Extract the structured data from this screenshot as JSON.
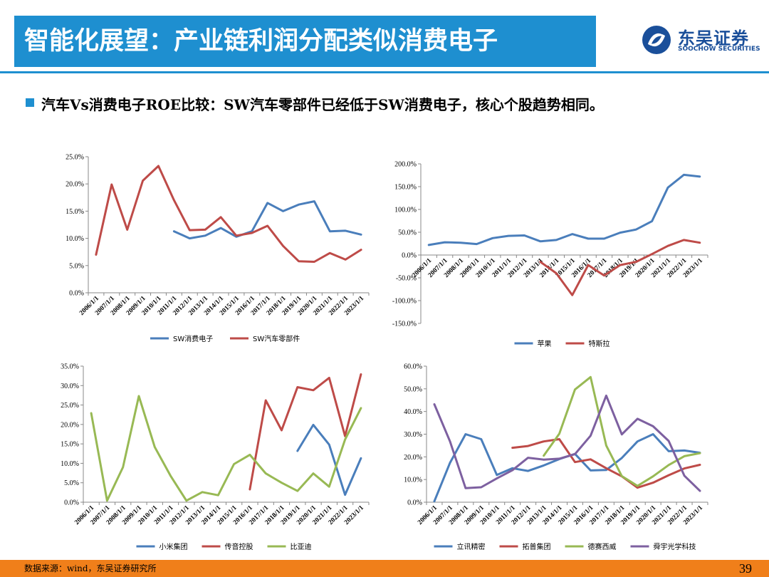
{
  "header": {
    "title": "智能化展望：产业链利润分配类似消费电子",
    "logo_cn": "东吴证券",
    "logo_en": "SOOCHOW SECURITIES"
  },
  "subtitle": "汽车Vs消费电子ROE比较：SW汽车零部件已经低于SW消费电子，核心个股趋势相同。",
  "footer": {
    "source": "数据来源：wind，东吴证券研究所",
    "page": "39"
  },
  "colors": {
    "blue": "#4a7ebb",
    "red": "#be4b48",
    "green": "#98b954",
    "purple": "#7d60a0",
    "title_bg": "#1e8fd0",
    "footer_bg": "#f07f1a"
  },
  "chart_data": [
    {
      "type": "line",
      "x": [
        "2006/1/1",
        "2007/1/1",
        "2008/1/1",
        "2009/1/1",
        "2010/1/1",
        "2011/1/1",
        "2012/1/1",
        "2013/1/1",
        "2014/1/1",
        "2015/1/1",
        "2016/1/1",
        "2017/1/1",
        "2018/1/1",
        "2019/1/1",
        "2020/1/1",
        "2021/1/1",
        "2022/1/1",
        "2023/1/1"
      ],
      "ylim": [
        0,
        25
      ],
      "yticks": [
        "0.0%",
        "5.0%",
        "10.0%",
        "15.0%",
        "20.0%",
        "25.0%"
      ],
      "legend_position": "bottom",
      "series": [
        {
          "name": "SW消费电子",
          "color": "blue",
          "values": [
            null,
            null,
            null,
            null,
            null,
            11.3,
            10.0,
            10.5,
            11.9,
            10.3,
            11.3,
            16.5,
            15.0,
            16.2,
            16.8,
            11.3,
            11.4,
            10.7
          ]
        },
        {
          "name": "SW汽车零部件",
          "color": "red",
          "values": [
            7.0,
            19.9,
            11.6,
            20.6,
            23.3,
            17.0,
            11.5,
            11.6,
            13.9,
            10.5,
            11.0,
            12.3,
            8.6,
            5.8,
            5.7,
            7.3,
            6.1,
            7.9
          ]
        }
      ]
    },
    {
      "type": "line",
      "x": [
        "2006/1/1",
        "2007/1/1",
        "2008/1/1",
        "2009/1/1",
        "2010/1/1",
        "2011/1/1",
        "2012/1/1",
        "2013/1/1",
        "2014/1/1",
        "2015/1/1",
        "2016/1/1",
        "2017/1/1",
        "2018/1/1",
        "2019/1/1",
        "2020/1/1",
        "2021/1/1",
        "2022/1/1",
        "2023/1/1"
      ],
      "ylim": [
        -150,
        200
      ],
      "yticks": [
        "-150.0%",
        "-100.0%",
        "-50.0%",
        "0.0%",
        "50.0%",
        "100.0%",
        "150.0%",
        "200.0%"
      ],
      "legend_position": "bottom",
      "series": [
        {
          "name": "苹果",
          "color": "blue",
          "values": [
            22,
            28,
            27,
            24,
            37,
            42,
            43,
            30,
            33,
            46,
            36,
            36,
            49,
            56,
            74,
            148,
            176,
            172
          ]
        },
        {
          "name": "特斯拉",
          "color": "red",
          "values": [
            null,
            null,
            null,
            null,
            null,
            null,
            null,
            -15,
            -40,
            -88,
            -22,
            -45,
            -22,
            -15,
            2,
            20,
            33,
            27
          ]
        }
      ]
    },
    {
      "type": "line",
      "x": [
        "2006/1/1",
        "2007/1/1",
        "2008/1/1",
        "2009/1/1",
        "2010/1/1",
        "2011/1/1",
        "2012/1/1",
        "2013/1/1",
        "2014/1/1",
        "2015/1/1",
        "2016/1/1",
        "2017/1/1",
        "2018/1/1",
        "2019/1/1",
        "2020/1/1",
        "2021/1/1",
        "2022/1/1",
        "2023/1/1"
      ],
      "ylim": [
        0,
        35
      ],
      "yticks": [
        "0.0%",
        "5.0%",
        "10.0%",
        "15.0%",
        "20.0%",
        "25.0%",
        "30.0%",
        "35.0%"
      ],
      "legend_position": "bottom",
      "series": [
        {
          "name": "小米集团",
          "color": "blue",
          "values": [
            null,
            null,
            null,
            null,
            null,
            null,
            null,
            null,
            null,
            null,
            null,
            null,
            null,
            13.2,
            19.9,
            14.8,
            1.9,
            11.3
          ]
        },
        {
          "name": "传音控股",
          "color": "red",
          "values": [
            null,
            null,
            null,
            null,
            null,
            null,
            null,
            null,
            null,
            null,
            3.3,
            26.2,
            18.5,
            29.6,
            28.8,
            32.0,
            17.0,
            32.9
          ]
        },
        {
          "name": "比亚迪",
          "color": "green",
          "values": [
            22.9,
            0.4,
            9.0,
            27.3,
            14.2,
            6.8,
            0.4,
            2.6,
            1.8,
            9.8,
            12.2,
            7.4,
            5.0,
            2.9,
            7.4,
            4.0,
            16.1,
            24.2
          ]
        }
      ]
    },
    {
      "type": "line",
      "x": [
        "2006/1/1",
        "2007/1/1",
        "2008/1/1",
        "2009/1/1",
        "2010/1/1",
        "2011/1/1",
        "2012/1/1",
        "2013/1/1",
        "2014/1/1",
        "2015/1/1",
        "2016/1/1",
        "2017/1/1",
        "2018/1/1",
        "2019/1/1",
        "2020/1/1",
        "2021/1/1",
        "2022/1/1",
        "2023/1/1"
      ],
      "ylim": [
        0,
        60
      ],
      "yticks": [
        "0.0%",
        "10.0%",
        "20.0%",
        "30.0%",
        "40.0%",
        "50.0%",
        "60.0%"
      ],
      "legend_position": "bottom",
      "series": [
        {
          "name": "立讯精密",
          "color": "blue",
          "values": [
            0.4,
            17.3,
            30.0,
            27.8,
            12.0,
            15.0,
            13.8,
            16.2,
            19.0,
            21.3,
            14.0,
            14.2,
            19.5,
            26.8,
            30.0,
            22.5,
            22.8,
            21.8
          ]
        },
        {
          "name": "拓普集团",
          "color": "red",
          "values": [
            null,
            null,
            null,
            null,
            null,
            24.0,
            24.8,
            26.8,
            27.8,
            17.7,
            18.9,
            15.0,
            11.4,
            6.4,
            8.6,
            11.9,
            14.9,
            16.5
          ]
        },
        {
          "name": "德赛西威",
          "color": "green",
          "values": [
            null,
            null,
            null,
            null,
            null,
            null,
            null,
            20.5,
            30.2,
            49.7,
            55.2,
            25.0,
            11.5,
            7.2,
            11.4,
            16.4,
            20.3,
            21.6
          ]
        },
        {
          "name": "舜宇光学科技",
          "color": "purple",
          "values": [
            43.2,
            26.9,
            6.2,
            6.6,
            10.5,
            14.1,
            19.6,
            18.8,
            19.2,
            21.2,
            29.3,
            47.0,
            29.9,
            36.8,
            33.5,
            27.0,
            11.7,
            5.0
          ]
        }
      ]
    }
  ]
}
